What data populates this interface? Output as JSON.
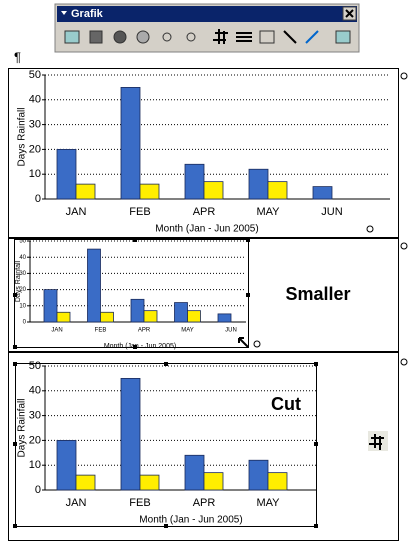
{
  "toolbar": {
    "title": "Grafik"
  },
  "pilcrow": "¶",
  "charts": [
    {
      "type": "bar",
      "y_label": "Days Rainfall",
      "x_label": "Month (Jan - Jun 2005)",
      "categories": [
        "JAN",
        "FEB",
        "APR",
        "MAY",
        "JUN"
      ],
      "series": [
        {
          "color": "#3a6cc6",
          "values": [
            20,
            45,
            14,
            12,
            5
          ]
        },
        {
          "color": "#ffee00",
          "values": [
            6,
            6,
            7,
            7,
            null
          ]
        }
      ],
      "ylim": [
        0,
        50
      ],
      "yticks": [
        0,
        10,
        20,
        30,
        40,
        50
      ],
      "grid": true
    },
    {
      "type": "bar",
      "y_label": "Days Rainfall",
      "x_label": "Month (Jan - Jun 2005)",
      "categories": [
        "JAN",
        "FEB",
        "APR",
        "MAY",
        "JUN"
      ],
      "series": [
        {
          "color": "#3a6cc6",
          "values": [
            20,
            45,
            14,
            12,
            5
          ]
        },
        {
          "color": "#ffee00",
          "values": [
            6,
            6,
            7,
            7,
            null
          ]
        }
      ],
      "ylim": [
        0,
        50
      ],
      "yticks": [
        0,
        10,
        20,
        30,
        40,
        50
      ],
      "grid": true,
      "annotation": "Smaller"
    },
    {
      "type": "bar",
      "y_label": "Days Rainfall",
      "x_label": "Month (Jan - Jun 2005)",
      "categories": [
        "JAN",
        "FEB",
        "APR",
        "MAY"
      ],
      "series": [
        {
          "color": "#3a6cc6",
          "values": [
            20,
            45,
            14,
            12
          ]
        },
        {
          "color": "#ffee00",
          "values": [
            6,
            6,
            7,
            7
          ]
        }
      ],
      "ylim": [
        0,
        50
      ],
      "yticks": [
        0,
        10,
        20,
        30,
        40,
        50
      ],
      "grid": true,
      "annotation": "Cut"
    }
  ]
}
